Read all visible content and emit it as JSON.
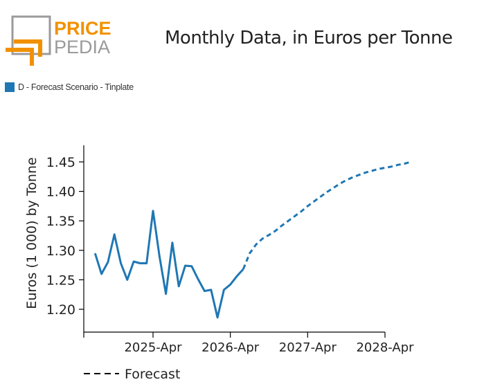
{
  "logo": {
    "word1": "PRICE",
    "word2": "PEDIA",
    "accent_color": "#f29100",
    "gray_color": "#9a9a9a"
  },
  "title": "Monthly Data, in Euros per Tonne",
  "chart_data": {
    "type": "line",
    "ylabel": "Euros (1 000) by Tonne",
    "xlabel": "",
    "ylim": [
      1.15,
      1.48
    ],
    "yticks": [
      "1.20",
      "1.25",
      "1.30",
      "1.35",
      "1.40",
      "1.45"
    ],
    "xticks": [
      "2025-Apr",
      "2026-Apr",
      "2027-Apr",
      "2028-Apr"
    ],
    "series": [
      {
        "name": "D - Forecast Scenario - Tinplate",
        "color": "#1f77b4",
        "actual": [
          [
            "2024-07",
            1.295
          ],
          [
            "2024-08",
            1.26
          ],
          [
            "2024-09",
            1.28
          ],
          [
            "2024-10",
            1.327
          ],
          [
            "2024-11",
            1.278
          ],
          [
            "2024-12",
            1.25
          ],
          [
            "2025-01",
            1.281
          ],
          [
            "2025-02",
            1.278
          ],
          [
            "2025-03",
            1.278
          ],
          [
            "2025-04",
            1.367
          ],
          [
            "2025-05",
            1.29
          ],
          [
            "2025-06",
            1.226
          ],
          [
            "2025-07",
            1.313
          ],
          [
            "2025-08",
            1.239
          ],
          [
            "2025-09",
            1.274
          ],
          [
            "2025-10",
            1.273
          ],
          [
            "2025-11",
            1.251
          ],
          [
            "2025-12",
            1.231
          ],
          [
            "2026-01",
            1.233
          ],
          [
            "2026-02",
            1.186
          ],
          [
            "2026-03",
            1.233
          ],
          [
            "2026-04",
            1.242
          ],
          [
            "2026-05",
            1.256
          ],
          [
            "2026-06",
            1.268
          ]
        ],
        "forecast": [
          [
            "2026-06",
            1.268
          ],
          [
            "2026-07",
            1.295
          ],
          [
            "2026-08",
            1.31
          ],
          [
            "2026-09",
            1.32
          ],
          [
            "2026-10",
            1.326
          ],
          [
            "2026-11",
            1.333
          ],
          [
            "2026-12",
            1.342
          ],
          [
            "2027-01",
            1.35
          ],
          [
            "2027-02",
            1.358
          ],
          [
            "2027-03",
            1.366
          ],
          [
            "2027-04",
            1.375
          ],
          [
            "2027-05",
            1.383
          ],
          [
            "2027-06",
            1.391
          ],
          [
            "2027-07",
            1.399
          ],
          [
            "2027-08",
            1.406
          ],
          [
            "2027-09",
            1.413
          ],
          [
            "2027-10",
            1.419
          ],
          [
            "2027-11",
            1.424
          ],
          [
            "2027-12",
            1.428
          ],
          [
            "2028-01",
            1.432
          ],
          [
            "2028-02",
            1.435
          ],
          [
            "2028-03",
            1.438
          ],
          [
            "2028-04",
            1.44
          ],
          [
            "2028-05",
            1.442
          ],
          [
            "2028-06",
            1.445
          ],
          [
            "2028-07",
            1.447
          ],
          [
            "2028-08",
            1.45
          ]
        ]
      }
    ],
    "forecast_legend": "Forecast"
  }
}
